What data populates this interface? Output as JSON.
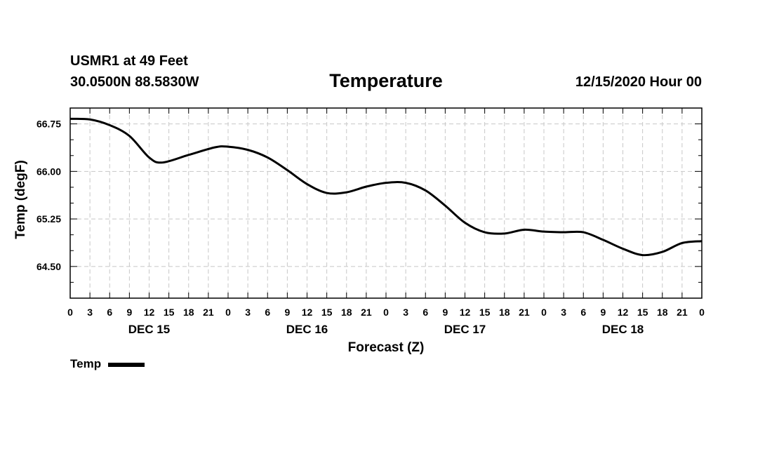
{
  "header": {
    "station": "USMR1 at 49 Feet",
    "coords": "30.0500N 88.5830W",
    "datetime": "12/15/2020 Hour 00"
  },
  "chart_data": {
    "type": "line",
    "title": "Temperature",
    "xlabel": "Forecast (Z)",
    "ylabel": "Temp (degF)",
    "ylim": [
      64.0,
      67.0
    ],
    "xlim": [
      0,
      96
    ],
    "grid": true,
    "yticks": [
      64.5,
      65.25,
      66.0,
      66.75
    ],
    "ytick_labels": [
      "64.50",
      "65.25",
      "66.00",
      "66.75"
    ],
    "xticks": [
      0,
      3,
      6,
      9,
      12,
      15,
      18,
      21,
      24,
      27,
      30,
      33,
      36,
      39,
      42,
      45,
      48,
      51,
      54,
      57,
      60,
      63,
      66,
      69,
      72,
      75,
      78,
      81,
      84,
      87,
      90,
      93,
      96
    ],
    "xtick_labels": [
      "0",
      "3",
      "6",
      "9",
      "12",
      "15",
      "18",
      "21",
      "0",
      "3",
      "6",
      "9",
      "12",
      "15",
      "18",
      "21",
      "0",
      "3",
      "6",
      "9",
      "12",
      "15",
      "18",
      "21",
      "0",
      "3",
      "6",
      "9",
      "12",
      "15",
      "18",
      "21",
      "0"
    ],
    "day_labels": [
      {
        "label": "DEC 15",
        "hour": 12
      },
      {
        "label": "DEC 16",
        "hour": 36
      },
      {
        "label": "DEC 17",
        "hour": 60
      },
      {
        "label": "DEC 18",
        "hour": 84
      }
    ],
    "legend": {
      "position": "bottom-left",
      "label": "Temp"
    },
    "series": [
      {
        "name": "Temp",
        "x": [
          0,
          3,
          6,
          9,
          12,
          14,
          18,
          22,
          24,
          27,
          30,
          33,
          36,
          39,
          42,
          45,
          48,
          51,
          54,
          57,
          60,
          63,
          66,
          69,
          72,
          75,
          78,
          81,
          84,
          87,
          90,
          93,
          96
        ],
        "values": [
          66.83,
          66.82,
          66.73,
          66.56,
          66.22,
          66.14,
          66.26,
          66.38,
          66.39,
          66.34,
          66.22,
          66.02,
          65.8,
          65.66,
          65.67,
          65.76,
          65.82,
          65.82,
          65.7,
          65.46,
          65.19,
          65.04,
          65.02,
          65.08,
          65.05,
          65.04,
          65.04,
          64.92,
          64.78,
          64.68,
          64.73,
          64.87,
          64.9
        ]
      }
    ]
  }
}
